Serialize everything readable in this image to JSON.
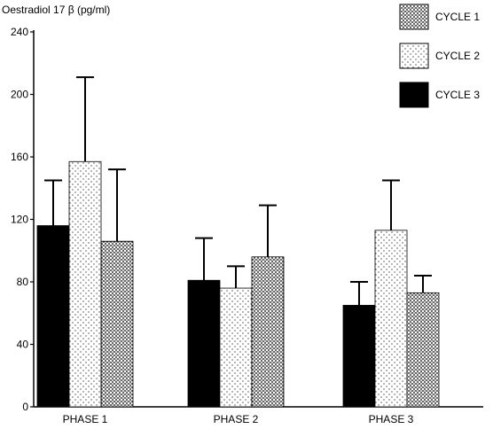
{
  "chart_data": {
    "type": "bar",
    "ylabel": "Oestradiol 17 β (pg/ml)",
    "categories": [
      "PHASE 1",
      "PHASE 2",
      "PHASE 3"
    ],
    "ylim": [
      0,
      240
    ],
    "yticks": [
      0,
      40,
      80,
      120,
      160,
      200,
      240
    ],
    "series": [
      {
        "name": "CYCLE 3",
        "pattern": "solid",
        "color": "#000000",
        "values": [
          116,
          81,
          65
        ],
        "errors": [
          29,
          27,
          15
        ]
      },
      {
        "name": "CYCLE 2",
        "pattern": "light-dots",
        "color": "#000000",
        "values": [
          157,
          76,
          113
        ],
        "errors": [
          54,
          14,
          32
        ]
      },
      {
        "name": "CYCLE 1",
        "pattern": "dense-dots",
        "color": "#000000",
        "values": [
          106,
          96,
          73
        ],
        "errors": [
          46,
          33,
          11
        ]
      }
    ],
    "legend": {
      "position": "top-right",
      "order": [
        "CYCLE 1",
        "CYCLE 2",
        "CYCLE 3"
      ]
    },
    "grid": false
  }
}
